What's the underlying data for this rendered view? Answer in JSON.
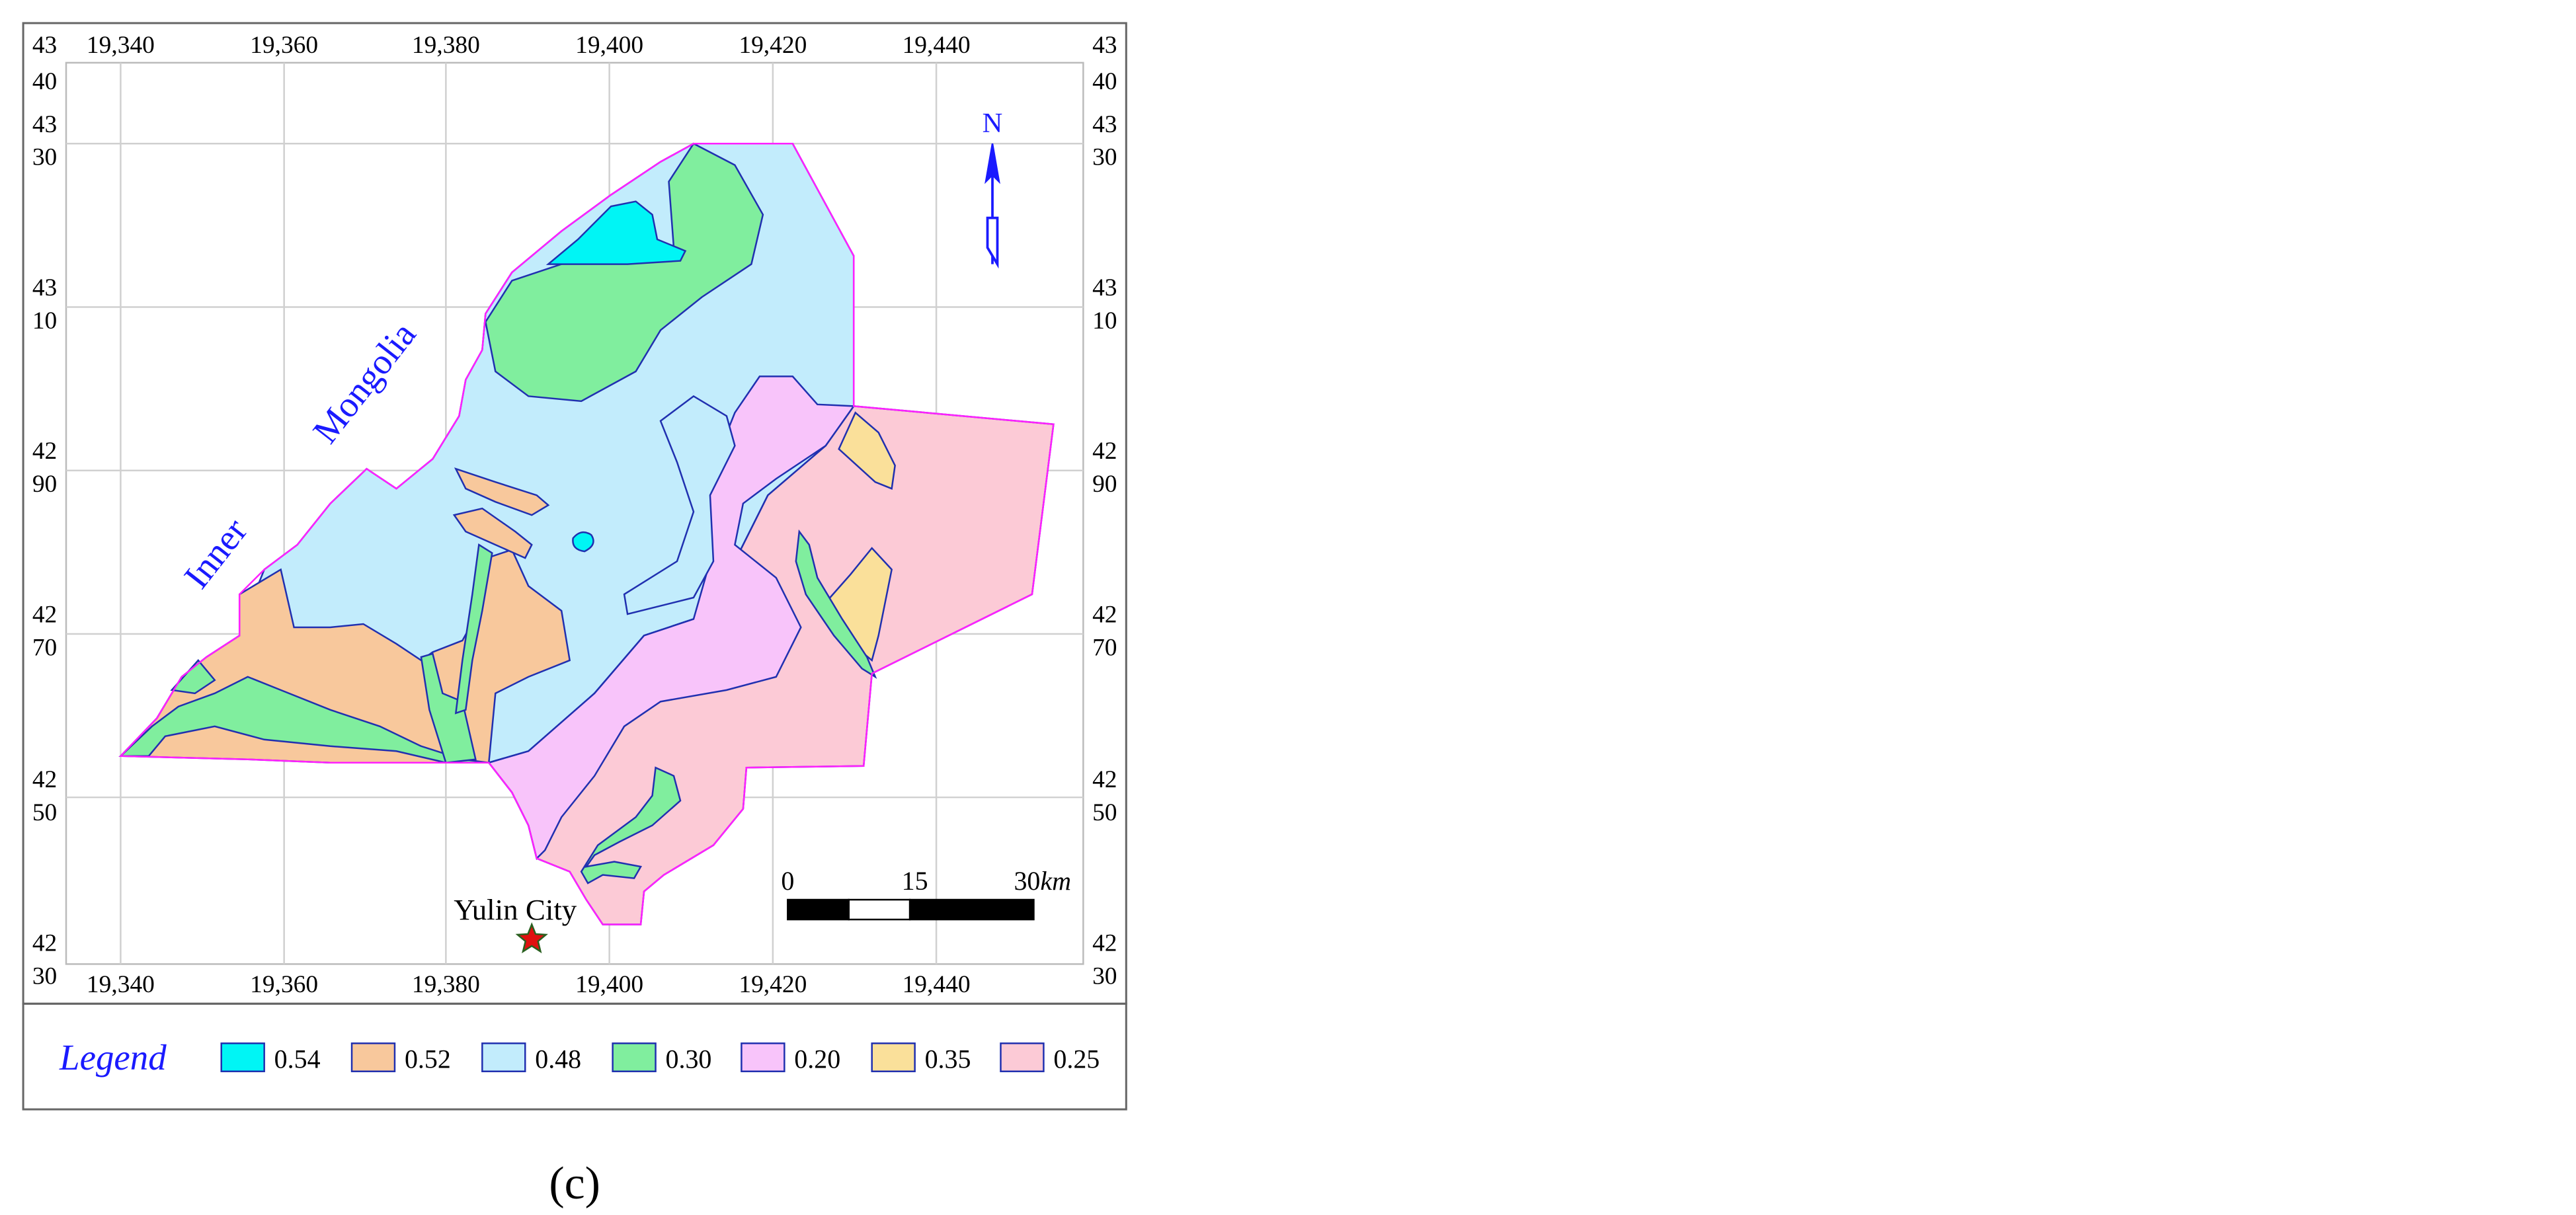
{
  "map": {
    "x_ticks": [
      "19,340",
      "19,360",
      "19,380",
      "19,400",
      "19,420",
      "19,440"
    ],
    "y_ticks": [
      {
        "top": "43",
        "bottom": "40"
      },
      {
        "top": "43",
        "bottom": "30"
      },
      {
        "top": "43",
        "bottom": "10"
      },
      {
        "top": "42",
        "bottom": "90"
      },
      {
        "top": "42",
        "bottom": "70"
      },
      {
        "top": "42",
        "bottom": "50"
      },
      {
        "top": "42",
        "bottom": "30"
      }
    ],
    "labels": {
      "inner": "Inner",
      "mongolia": "Mongolia",
      "city": "Yulin City",
      "north": "N"
    },
    "scale_bar": {
      "start": "0",
      "mid": "15",
      "end": "30",
      "unit": "km"
    },
    "colors": {
      "c054": "#00f5f5",
      "c052": "#f8c89c",
      "c048": "#c2ecfc",
      "c030": "#80ee9e",
      "c020": "#f8c4fa",
      "c035": "#fae09a",
      "c025": "#fccad6",
      "boundary": "#ff20ff",
      "zone_line": "#2030b0",
      "label_blue": "#1a1aff"
    }
  },
  "legend": {
    "title": "Legend",
    "items": [
      {
        "value": "0.54",
        "color": "#00f5f5"
      },
      {
        "value": "0.52",
        "color": "#f8c89c"
      },
      {
        "value": "0.48",
        "color": "#c2ecfc"
      },
      {
        "value": "0.30",
        "color": "#80ee9e"
      },
      {
        "value": "0.20",
        "color": "#f8c4fa"
      },
      {
        "value": "0.35",
        "color": "#fae09a"
      },
      {
        "value": "0.25",
        "color": "#fccad6"
      }
    ]
  },
  "caption": "(c)"
}
